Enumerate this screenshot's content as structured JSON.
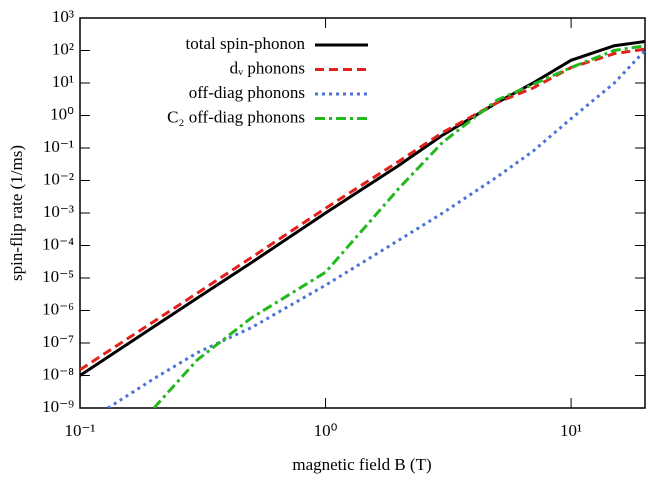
{
  "chart_data": {
    "type": "line",
    "xlabel": "magnetic field B (T)",
    "ylabel": "spin-flip rate (1/ms)",
    "xlog": true,
    "ylog": true,
    "legend": "upper left",
    "x": [
      0.1,
      0.13,
      0.2,
      0.3,
      0.5,
      1,
      2,
      3,
      5,
      7,
      10,
      15,
      20
    ],
    "series": [
      {
        "name": "total spin-phonon",
        "color": "#000000",
        "dash": "none",
        "values": [
          1e-08,
          3.7e-08,
          3.2e-07,
          2.4e-06,
          3e-05,
          0.001,
          0.03,
          0.25,
          2.5,
          10,
          50,
          140,
          190
        ]
      },
      {
        "name": "dᵥ phonons",
        "color": "#e3201c",
        "dash": "9,5",
        "values": [
          1.5e-08,
          5.5e-08,
          4.6e-07,
          3.4e-06,
          4.3e-05,
          0.0014,
          0.04,
          0.3,
          2.5,
          7,
          30,
          80,
          110
        ]
      },
      {
        "name": "off-diag phonons",
        "color": "#4a72d8",
        "dash": "3,4",
        "values": [
          null,
          1e-09,
          8e-09,
          5e-08,
          3e-07,
          6e-06,
          0.00015,
          0.001,
          0.013,
          0.08,
          0.8,
          10,
          100
        ]
      },
      {
        "name": "C₂ off-diag phonons",
        "color": "#22b81e",
        "dash": "10,4,3,4",
        "values": [
          null,
          null,
          1e-09,
          3e-08,
          6e-07,
          1.5e-05,
          0.006,
          0.15,
          3,
          9,
          30,
          100,
          140
        ]
      }
    ],
    "xlim": [
      0.1,
      20
    ],
    "xticks": [
      {
        "value": 0.1,
        "label": "10⁻¹"
      },
      {
        "value": 1,
        "label": "10⁰"
      },
      {
        "value": 10,
        "label": "10¹"
      }
    ],
    "ylim": [
      1e-09,
      1000
    ],
    "yticks": [
      {
        "value": 1e-09,
        "label": "10⁻⁹"
      },
      {
        "value": 1e-08,
        "label": "10⁻⁸"
      },
      {
        "value": 1e-07,
        "label": "10⁻⁷"
      },
      {
        "value": 1e-06,
        "label": "10⁻⁶"
      },
      {
        "value": 1e-05,
        "label": "10⁻⁵"
      },
      {
        "value": 0.0001,
        "label": "10⁻⁴"
      },
      {
        "value": 0.001,
        "label": "10⁻³"
      },
      {
        "value": 0.01,
        "label": "10⁻²"
      },
      {
        "value": 0.1,
        "label": "10⁻¹"
      },
      {
        "value": 1,
        "label": "10⁰"
      },
      {
        "value": 10,
        "label": "10¹"
      },
      {
        "value": 100,
        "label": "10²"
      },
      {
        "value": 1000,
        "label": "10³"
      }
    ]
  }
}
